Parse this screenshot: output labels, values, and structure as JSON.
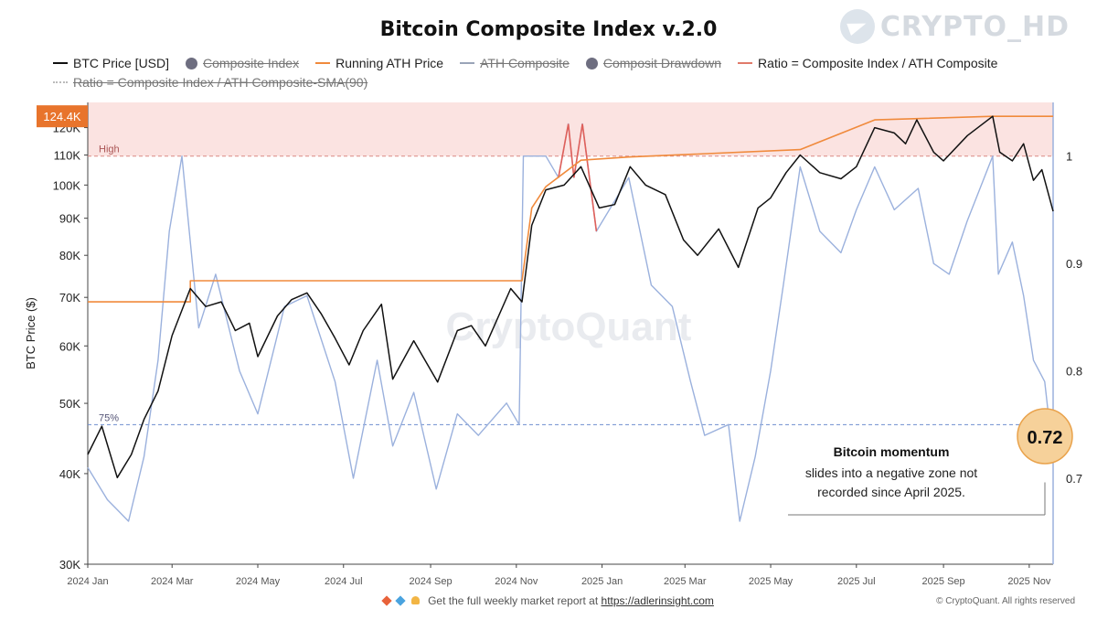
{
  "brand": {
    "watermark_text": "CRYPTO_HD",
    "logo_icon": "telegram-plane-icon"
  },
  "legend": [
    {
      "label": "BTC Price [USD]",
      "marker": "line",
      "color": "#111111",
      "struck": false
    },
    {
      "label": "Composite Index",
      "marker": "dot",
      "color": "#6e6e80",
      "struck": true
    },
    {
      "label": "Running ATH Price",
      "marker": "line",
      "color": "#f08a3c",
      "struck": false
    },
    {
      "label": "ATH Composite",
      "marker": "line",
      "color": "#9aa4b8",
      "struck": true
    },
    {
      "label": "Composit Drawdown",
      "marker": "dot",
      "color": "#6e6e80",
      "struck": true
    },
    {
      "label": "Ratio = Composite Index / ATH Composite",
      "marker": "line",
      "color": "#e07a6a",
      "struck": false
    },
    {
      "label": "Ratio = Composite Index / ATH Composite-SMA(90)",
      "marker": "dotted",
      "color": "#bbbbbb",
      "struck": true
    }
  ],
  "price_badge": "124.4K",
  "value_badge": "0.72",
  "zone_labels": {
    "high": "High",
    "low": "75%"
  },
  "annotation": {
    "title": "Bitcoin momentum",
    "line1": "slides into a negative zone not",
    "line2": "recorded since April 2025."
  },
  "chart_watermark": "CryptoQuant",
  "footer": {
    "text": "Get the full weekly market report at",
    "link": "https://adlerinsight.com",
    "copyright": "© CryptoQuant. All rights reserved"
  },
  "colors": {
    "btc": "#111111",
    "ath": "#f08a3c",
    "ratio": "#9bb1dd",
    "ratio_high": "#e0605a",
    "high_zone": "#fbe3e1",
    "badge": "#e8742c"
  },
  "chart_data": {
    "type": "line",
    "title": "Bitcoin Composite Index v.2.0",
    "ylabel": "BTC Price ($)",
    "y_scale": "log",
    "ylim": [
      30000,
      130000
    ],
    "y_ticks": [
      30000,
      40000,
      50000,
      60000,
      70000,
      80000,
      90000,
      100000,
      110000,
      120000
    ],
    "y_tick_labels": [
      "30K",
      "40K",
      "50K",
      "60K",
      "70K",
      "80K",
      "90K",
      "100K",
      "110K",
      "120K"
    ],
    "y2_ticks": [
      0.7,
      0.8,
      0.9,
      1.0
    ],
    "y2_tick_labels": [
      "0.7",
      "0.8",
      "0.9",
      "1"
    ],
    "y2_range": [
      0.62,
      1.05
    ],
    "x_ticks": [
      "2024-01-01",
      "2024-03-01",
      "2024-05-01",
      "2024-07-01",
      "2024-09-01",
      "2024-11-01",
      "2025-01-01",
      "2025-03-01",
      "2025-05-01",
      "2025-07-01",
      "2025-09-01",
      "2025-11-01"
    ],
    "x_tick_labels": [
      "2024 Jan",
      "2024 Mar",
      "2024 May",
      "2024 Jul",
      "2024 Sep",
      "2024 Nov",
      "2025 Jan",
      "2025 Mar",
      "2025 May",
      "2025 Jul",
      "2025 Sep",
      "2025 Nov"
    ],
    "x_range": [
      "2024-01-01",
      "2025-11-18"
    ],
    "reference_lines": [
      {
        "label": "High",
        "axis": "y2",
        "value": 1.0
      },
      {
        "label": "75%",
        "axis": "y2",
        "value": 0.75
      }
    ],
    "series": [
      {
        "name": "BTC Price [USD]",
        "axis": "y",
        "points": [
          [
            "2024-01-01",
            42500
          ],
          [
            "2024-01-11",
            46500
          ],
          [
            "2024-01-22",
            39500
          ],
          [
            "2024-02-01",
            42500
          ],
          [
            "2024-02-10",
            47500
          ],
          [
            "2024-02-20",
            52000
          ],
          [
            "2024-03-01",
            62000
          ],
          [
            "2024-03-14",
            72000
          ],
          [
            "2024-03-25",
            68000
          ],
          [
            "2024-04-05",
            69000
          ],
          [
            "2024-04-15",
            63000
          ],
          [
            "2024-04-25",
            64500
          ],
          [
            "2024-05-01",
            58000
          ],
          [
            "2024-05-15",
            66000
          ],
          [
            "2024-05-25",
            69500
          ],
          [
            "2024-06-05",
            71000
          ],
          [
            "2024-06-15",
            66500
          ],
          [
            "2024-06-25",
            61500
          ],
          [
            "2024-07-05",
            56500
          ],
          [
            "2024-07-15",
            63000
          ],
          [
            "2024-07-28",
            68500
          ],
          [
            "2024-08-05",
            54000
          ],
          [
            "2024-08-20",
            61000
          ],
          [
            "2024-09-06",
            53500
          ],
          [
            "2024-09-20",
            63000
          ],
          [
            "2024-09-30",
            64000
          ],
          [
            "2024-10-10",
            60000
          ],
          [
            "2024-10-28",
            72000
          ],
          [
            "2024-11-05",
            69000
          ],
          [
            "2024-11-12",
            88000
          ],
          [
            "2024-11-22",
            98500
          ],
          [
            "2024-12-05",
            100000
          ],
          [
            "2024-12-17",
            106000
          ],
          [
            "2024-12-30",
            93000
          ],
          [
            "2025-01-10",
            94000
          ],
          [
            "2025-01-21",
            106000
          ],
          [
            "2025-02-01",
            100000
          ],
          [
            "2025-02-15",
            97000
          ],
          [
            "2025-02-28",
            84000
          ],
          [
            "2025-03-10",
            80000
          ],
          [
            "2025-03-25",
            87000
          ],
          [
            "2025-04-08",
            77000
          ],
          [
            "2025-04-22",
            93000
          ],
          [
            "2025-05-01",
            96000
          ],
          [
            "2025-05-12",
            104000
          ],
          [
            "2025-05-22",
            110000
          ],
          [
            "2025-06-05",
            104000
          ],
          [
            "2025-06-20",
            102000
          ],
          [
            "2025-07-01",
            106000
          ],
          [
            "2025-07-14",
            120000
          ],
          [
            "2025-07-28",
            118000
          ],
          [
            "2025-08-05",
            114000
          ],
          [
            "2025-08-13",
            123000
          ],
          [
            "2025-08-25",
            111000
          ],
          [
            "2025-09-01",
            108000
          ],
          [
            "2025-09-18",
            117000
          ],
          [
            "2025-10-06",
            124400
          ],
          [
            "2025-10-11",
            111000
          ],
          [
            "2025-10-20",
            108000
          ],
          [
            "2025-10-28",
            114000
          ],
          [
            "2025-11-04",
            101500
          ],
          [
            "2025-11-10",
            105000
          ],
          [
            "2025-11-18",
            92000
          ]
        ]
      },
      {
        "name": "Running ATH Price",
        "axis": "y",
        "points": [
          [
            "2024-01-01",
            69000
          ],
          [
            "2024-03-14",
            69000
          ],
          [
            "2024-03-14",
            73800
          ],
          [
            "2024-11-05",
            73800
          ],
          [
            "2024-11-12",
            93000
          ],
          [
            "2024-11-22",
            99500
          ],
          [
            "2024-12-17",
            108200
          ],
          [
            "2025-01-20",
            109300
          ],
          [
            "2025-05-22",
            111900
          ],
          [
            "2025-07-14",
            123000
          ],
          [
            "2025-10-06",
            124400
          ],
          [
            "2025-11-18",
            124400
          ]
        ]
      },
      {
        "name": "Ratio = Composite Index / ATH Composite",
        "axis": "y2",
        "points": [
          [
            "2024-01-01",
            0.71
          ],
          [
            "2024-01-15",
            0.68
          ],
          [
            "2024-01-30",
            0.66
          ],
          [
            "2024-02-10",
            0.72
          ],
          [
            "2024-02-20",
            0.81
          ],
          [
            "2024-02-28",
            0.93
          ],
          [
            "2024-03-08",
            1.0
          ],
          [
            "2024-03-20",
            0.84
          ],
          [
            "2024-04-01",
            0.89
          ],
          [
            "2024-04-18",
            0.8
          ],
          [
            "2024-05-01",
            0.76
          ],
          [
            "2024-05-20",
            0.86
          ],
          [
            "2024-06-05",
            0.87
          ],
          [
            "2024-06-25",
            0.79
          ],
          [
            "2024-07-08",
            0.7
          ],
          [
            "2024-07-25",
            0.81
          ],
          [
            "2024-08-05",
            0.73
          ],
          [
            "2024-08-20",
            0.78
          ],
          [
            "2024-09-05",
            0.69
          ],
          [
            "2024-09-20",
            0.76
          ],
          [
            "2024-10-05",
            0.74
          ],
          [
            "2024-10-25",
            0.77
          ],
          [
            "2024-11-03",
            0.75
          ],
          [
            "2024-11-06",
            1.0
          ],
          [
            "2024-11-12",
            1.0
          ],
          [
            "2024-11-22",
            1.0
          ],
          [
            "2024-12-01",
            0.98
          ],
          [
            "2024-12-08",
            1.03
          ],
          [
            "2024-12-12",
            0.98
          ],
          [
            "2024-12-18",
            1.03
          ],
          [
            "2024-12-28",
            0.93
          ],
          [
            "2025-01-20",
            0.98
          ],
          [
            "2025-02-05",
            0.88
          ],
          [
            "2025-02-20",
            0.86
          ],
          [
            "2025-03-05",
            0.79
          ],
          [
            "2025-03-15",
            0.74
          ],
          [
            "2025-04-01",
            0.75
          ],
          [
            "2025-04-09",
            0.66
          ],
          [
            "2025-04-20",
            0.72
          ],
          [
            "2025-05-01",
            0.8
          ],
          [
            "2025-05-10",
            0.88
          ],
          [
            "2025-05-22",
            0.99
          ],
          [
            "2025-06-05",
            0.93
          ],
          [
            "2025-06-20",
            0.91
          ],
          [
            "2025-07-01",
            0.95
          ],
          [
            "2025-07-14",
            0.99
          ],
          [
            "2025-07-28",
            0.95
          ],
          [
            "2025-08-14",
            0.97
          ],
          [
            "2025-08-25",
            0.9
          ],
          [
            "2025-09-05",
            0.89
          ],
          [
            "2025-09-18",
            0.94
          ],
          [
            "2025-10-06",
            1.0
          ],
          [
            "2025-10-10",
            0.89
          ],
          [
            "2025-10-20",
            0.92
          ],
          [
            "2025-10-28",
            0.87
          ],
          [
            "2025-11-04",
            0.81
          ],
          [
            "2025-11-12",
            0.79
          ],
          [
            "2025-11-18",
            0.72
          ]
        ]
      }
    ],
    "highlighted_value": 0.72,
    "highlighted_price": "124.4K"
  }
}
